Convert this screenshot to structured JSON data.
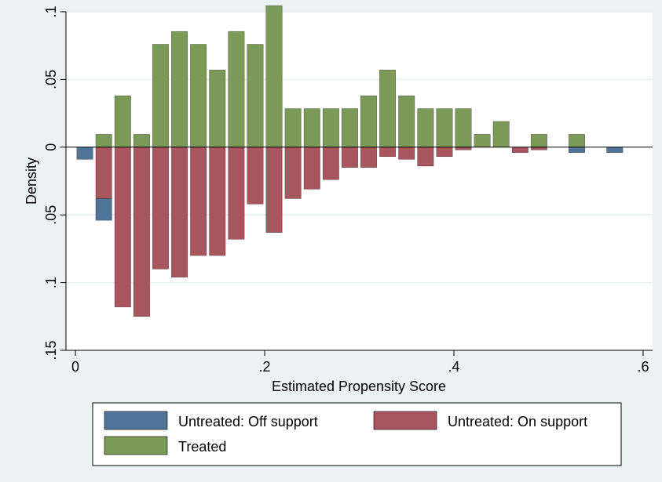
{
  "chart_data": {
    "type": "bar",
    "title": "",
    "xlabel": "Estimated Propensity Score",
    "ylabel": "Density",
    "xlim": [
      -0.01,
      0.61
    ],
    "ylim": [
      -0.15,
      0.1
    ],
    "x_ticks": [
      0,
      0.2,
      0.4,
      0.6
    ],
    "x_tick_labels": [
      "0",
      ".2",
      ".4",
      ".6"
    ],
    "y_ticks": [
      -0.15,
      -0.1,
      -0.05,
      0,
      0.05,
      0.1
    ],
    "y_tick_labels": [
      ".15",
      ".1",
      ".05",
      "0",
      ".05",
      ".1"
    ],
    "grid": true,
    "bar_width": 0.017,
    "legend": {
      "position": "bottom",
      "entries": [
        {
          "label": "Untreated: Off support",
          "color": "#4f7497"
        },
        {
          "label": "Untreated: On support",
          "color": "#a9555e"
        },
        {
          "label": "Treated",
          "color": "#7b9a57"
        }
      ]
    },
    "series": [
      {
        "name": "Treated",
        "color": "#7b9a57",
        "direction": "up",
        "x": [
          0.03,
          0.05,
          0.07,
          0.09,
          0.11,
          0.13,
          0.15,
          0.17,
          0.19,
          0.21,
          0.23,
          0.25,
          0.27,
          0.29,
          0.31,
          0.33,
          0.35,
          0.37,
          0.39,
          0.41,
          0.43,
          0.45,
          0.49,
          0.53
        ],
        "values": [
          0.0095,
          0.038,
          0.0095,
          0.076,
          0.0855,
          0.076,
          0.057,
          0.0855,
          0.076,
          0.1045,
          0.0285,
          0.0285,
          0.0285,
          0.0285,
          0.038,
          0.057,
          0.038,
          0.0285,
          0.0285,
          0.0285,
          0.0095,
          0.019,
          0.0095,
          0.0095
        ]
      },
      {
        "name": "Untreated: On support",
        "color": "#a9555e",
        "direction": "down",
        "x": [
          0.03,
          0.05,
          0.07,
          0.09,
          0.11,
          0.13,
          0.15,
          0.17,
          0.19,
          0.21,
          0.23,
          0.25,
          0.27,
          0.29,
          0.31,
          0.33,
          0.35,
          0.37,
          0.39,
          0.41,
          0.47,
          0.49
        ],
        "values": [
          0.038,
          0.118,
          0.125,
          0.09,
          0.096,
          0.08,
          0.08,
          0.068,
          0.042,
          0.063,
          0.038,
          0.031,
          0.024,
          0.015,
          0.015,
          0.007,
          0.009,
          0.014,
          0.007,
          0.002,
          0.004,
          0.002
        ]
      },
      {
        "name": "Untreated: Off support",
        "color": "#4f7497",
        "direction": "down",
        "x": [
          0.01,
          0.03,
          0.53,
          0.57
        ],
        "base": [
          0,
          0.038,
          0,
          0
        ],
        "values": [
          0.009,
          0.016,
          0.004,
          0.004
        ]
      }
    ]
  }
}
